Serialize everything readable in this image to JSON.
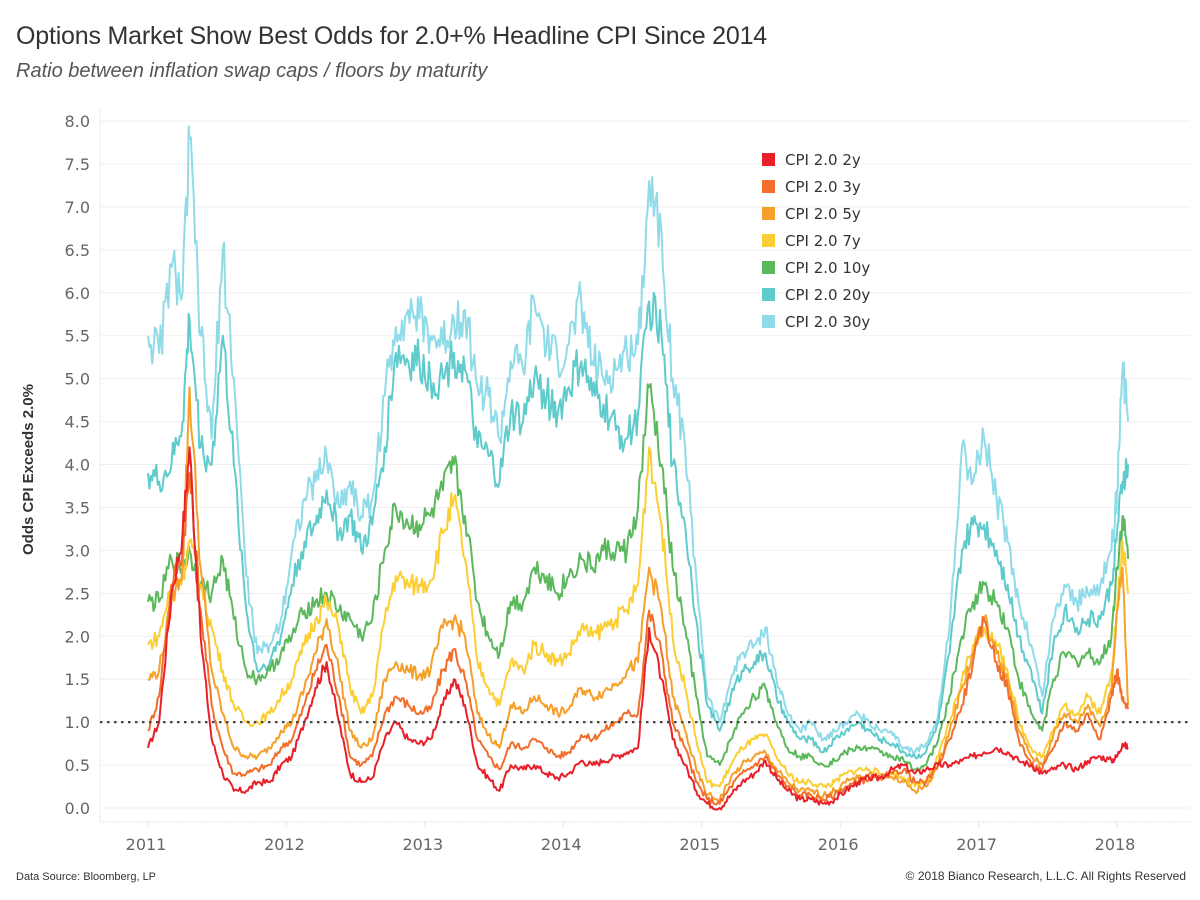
{
  "header": {
    "title": "Options Market Show Best Odds for 2.0+% Headline CPI Since 2014",
    "subtitle": "Ratio between inflation swap caps / floors by maturity"
  },
  "footer": {
    "source": "Data Source: Bloomberg, LP",
    "copyright_symbol": "©",
    "copyright": "2018 Bianco Research, L.L.C. All Rights Reserved"
  },
  "chart_data": {
    "type": "line",
    "title": "Options Market Show Best Odds for 2.0+% Headline CPI Since 2014",
    "subtitle": "Ratio between inflation swap caps / floors by maturity",
    "xlabel": "",
    "ylabel": "Odds CPI Exceeds 2.0%",
    "xlim": [
      2010.65,
      2018.55
    ],
    "ylim": [
      -0.1,
      8.1
    ],
    "yticks": [
      "0.0",
      "0.5",
      "1.0",
      "1.5",
      "2.0",
      "2.5",
      "3.0",
      "3.5",
      "4.0",
      "4.5",
      "5.0",
      "5.5",
      "6.0",
      "6.5",
      "7.0",
      "7.5",
      "8.0"
    ],
    "xticks": [
      "2011",
      "2012",
      "2013",
      "2014",
      "2015",
      "2016",
      "2017",
      "2018"
    ],
    "grid": true,
    "legend_position": "top-right",
    "reference_line": {
      "y": 1.0,
      "style": "dotted",
      "color": "#444444"
    },
    "x": [
      2011.0,
      2011.08,
      2011.17,
      2011.25,
      2011.3,
      2011.38,
      2011.46,
      2011.54,
      2011.62,
      2011.71,
      2011.79,
      2011.88,
      2011.96,
      2012.04,
      2012.13,
      2012.21,
      2012.29,
      2012.38,
      2012.46,
      2012.54,
      2012.62,
      2012.71,
      2012.79,
      2012.88,
      2012.96,
      2013.04,
      2013.13,
      2013.21,
      2013.29,
      2013.38,
      2013.46,
      2013.54,
      2013.62,
      2013.71,
      2013.79,
      2013.88,
      2013.96,
      2014.04,
      2014.13,
      2014.21,
      2014.29,
      2014.38,
      2014.46,
      2014.54,
      2014.62,
      2014.71,
      2014.79,
      2014.88,
      2014.96,
      2015.04,
      2015.13,
      2015.21,
      2015.29,
      2015.38,
      2015.46,
      2015.54,
      2015.62,
      2015.71,
      2015.79,
      2015.88,
      2015.96,
      2016.04,
      2016.13,
      2016.21,
      2016.29,
      2016.38,
      2016.46,
      2016.54,
      2016.62,
      2016.71,
      2016.79,
      2016.88,
      2016.96,
      2017.04,
      2017.13,
      2017.21,
      2017.29,
      2017.38,
      2017.46,
      2017.54,
      2017.62,
      2017.71,
      2017.79,
      2017.88,
      2017.96,
      2018.0,
      2018.04,
      2018.08
    ],
    "series": [
      {
        "name": "CPI 2.0 2y",
        "color": "#e8202a",
        "values": [
          0.7,
          1.0,
          2.5,
          3.2,
          4.2,
          2.0,
          0.8,
          0.4,
          0.2,
          0.2,
          0.3,
          0.3,
          0.5,
          0.6,
          1.0,
          1.4,
          1.7,
          1.0,
          0.4,
          0.3,
          0.35,
          0.8,
          1.0,
          0.8,
          0.75,
          0.8,
          1.2,
          1.5,
          1.2,
          0.5,
          0.35,
          0.2,
          0.5,
          0.45,
          0.5,
          0.4,
          0.35,
          0.4,
          0.55,
          0.5,
          0.55,
          0.6,
          0.65,
          0.7,
          2.1,
          1.5,
          0.8,
          0.5,
          0.2,
          0.05,
          0.0,
          0.15,
          0.3,
          0.4,
          0.55,
          0.35,
          0.2,
          0.1,
          0.1,
          0.05,
          0.1,
          0.2,
          0.3,
          0.35,
          0.35,
          0.45,
          0.5,
          0.4,
          0.45,
          0.5,
          0.5,
          0.55,
          0.6,
          0.65,
          0.7,
          0.65,
          0.55,
          0.5,
          0.4,
          0.45,
          0.5,
          0.45,
          0.55,
          0.6,
          0.55,
          0.6,
          0.75,
          0.7
        ]
      },
      {
        "name": "CPI 2.0 3y",
        "color": "#f26e2b",
        "values": [
          0.9,
          1.3,
          2.6,
          3.0,
          3.9,
          2.3,
          1.2,
          0.7,
          0.4,
          0.4,
          0.45,
          0.5,
          0.7,
          0.8,
          1.2,
          1.6,
          1.9,
          1.3,
          0.6,
          0.5,
          0.6,
          1.1,
          1.3,
          1.2,
          1.1,
          1.15,
          1.6,
          1.85,
          1.5,
          0.8,
          0.6,
          0.45,
          0.75,
          0.7,
          0.8,
          0.7,
          0.6,
          0.65,
          0.85,
          0.8,
          0.9,
          1.0,
          1.1,
          1.1,
          2.3,
          1.8,
          1.0,
          0.7,
          0.3,
          0.1,
          0.05,
          0.25,
          0.4,
          0.5,
          0.6,
          0.4,
          0.25,
          0.15,
          0.15,
          0.1,
          0.15,
          0.25,
          0.3,
          0.35,
          0.35,
          0.4,
          0.45,
          0.3,
          0.3,
          0.5,
          0.8,
          1.2,
          1.7,
          2.2,
          1.7,
          1.4,
          0.8,
          0.5,
          0.45,
          0.7,
          1.0,
          0.9,
          1.1,
          0.8,
          1.3,
          1.6,
          1.25,
          1.15
        ]
      },
      {
        "name": "CPI 2.0 5y",
        "color": "#f5a02a",
        "values": [
          1.5,
          1.6,
          2.4,
          2.8,
          4.9,
          2.8,
          1.6,
          1.1,
          0.7,
          0.6,
          0.6,
          0.7,
          0.9,
          1.0,
          1.4,
          1.8,
          2.2,
          1.6,
          0.9,
          0.7,
          0.8,
          1.5,
          1.7,
          1.6,
          1.55,
          1.6,
          2.1,
          2.2,
          2.0,
          1.1,
          0.85,
          0.7,
          1.2,
          1.1,
          1.3,
          1.2,
          1.1,
          1.15,
          1.4,
          1.3,
          1.35,
          1.45,
          1.6,
          1.7,
          2.8,
          2.3,
          1.3,
          0.9,
          0.45,
          0.15,
          0.1,
          0.35,
          0.5,
          0.6,
          0.65,
          0.45,
          0.3,
          0.2,
          0.2,
          0.15,
          0.2,
          0.3,
          0.35,
          0.4,
          0.35,
          0.35,
          0.3,
          0.2,
          0.25,
          0.5,
          0.9,
          1.4,
          1.8,
          2.2,
          1.8,
          1.5,
          0.9,
          0.6,
          0.5,
          0.85,
          1.1,
          1.0,
          1.2,
          0.95,
          1.4,
          2.3,
          2.8,
          1.2
        ]
      },
      {
        "name": "CPI 2.0 7y",
        "color": "#fbcf33",
        "values": [
          1.9,
          2.0,
          2.6,
          2.7,
          3.1,
          2.6,
          2.1,
          1.6,
          1.2,
          1.0,
          1.0,
          1.1,
          1.3,
          1.5,
          1.9,
          2.2,
          2.4,
          2.1,
          1.4,
          1.1,
          1.3,
          2.2,
          2.7,
          2.6,
          2.6,
          2.65,
          3.2,
          3.6,
          2.9,
          1.7,
          1.4,
          1.2,
          1.7,
          1.6,
          1.9,
          1.8,
          1.7,
          1.8,
          2.1,
          2.0,
          2.1,
          2.2,
          2.3,
          2.6,
          4.2,
          3.3,
          2.0,
          1.4,
          0.8,
          0.3,
          0.25,
          0.5,
          0.7,
          0.8,
          0.85,
          0.6,
          0.4,
          0.3,
          0.3,
          0.25,
          0.3,
          0.4,
          0.45,
          0.45,
          0.4,
          0.4,
          0.35,
          0.25,
          0.3,
          0.6,
          1.0,
          1.5,
          1.9,
          2.1,
          1.9,
          1.6,
          1.0,
          0.7,
          0.6,
          0.9,
          1.2,
          1.1,
          1.3,
          1.1,
          1.6,
          2.3,
          3.1,
          2.5
        ]
      },
      {
        "name": "CPI 2.0 10y",
        "color": "#5cb85c",
        "values": [
          2.4,
          2.4,
          2.9,
          2.8,
          3.0,
          2.6,
          2.5,
          2.9,
          2.2,
          1.6,
          1.5,
          1.6,
          1.8,
          2.0,
          2.3,
          2.4,
          2.5,
          2.3,
          2.2,
          2.0,
          2.2,
          3.0,
          3.5,
          3.3,
          3.3,
          3.4,
          3.7,
          4.0,
          3.4,
          2.4,
          2.0,
          1.8,
          2.4,
          2.4,
          2.8,
          2.7,
          2.5,
          2.7,
          2.9,
          2.8,
          3.0,
          3.0,
          3.0,
          3.5,
          4.9,
          4.0,
          2.8,
          2.1,
          1.3,
          0.6,
          0.5,
          0.8,
          1.1,
          1.3,
          1.4,
          1.0,
          0.7,
          0.6,
          0.6,
          0.5,
          0.55,
          0.65,
          0.7,
          0.7,
          0.65,
          0.6,
          0.55,
          0.45,
          0.5,
          0.8,
          1.3,
          2.0,
          2.4,
          2.6,
          2.4,
          2.1,
          1.5,
          1.1,
          0.9,
          1.5,
          1.8,
          1.7,
          1.8,
          1.7,
          2.0,
          2.8,
          3.4,
          2.9
        ]
      },
      {
        "name": "CPI 2.0 20y",
        "color": "#5fcbcc",
        "values": [
          3.9,
          3.8,
          4.0,
          4.5,
          5.7,
          4.2,
          4.0,
          5.5,
          4.0,
          2.3,
          1.6,
          1.7,
          2.0,
          2.6,
          3.1,
          3.3,
          3.7,
          3.2,
          3.4,
          3.0,
          3.3,
          4.2,
          5.3,
          5.2,
          5.2,
          5.0,
          5.0,
          5.3,
          5.1,
          4.2,
          4.1,
          3.8,
          4.6,
          4.5,
          5.0,
          4.8,
          4.6,
          4.9,
          5.2,
          4.8,
          4.7,
          4.4,
          4.3,
          4.6,
          5.9,
          5.5,
          4.0,
          3.3,
          2.2,
          1.2,
          0.9,
          1.3,
          1.6,
          1.7,
          1.8,
          1.3,
          1.0,
          0.8,
          0.8,
          0.65,
          0.8,
          0.9,
          1.0,
          0.9,
          0.8,
          0.75,
          0.65,
          0.6,
          0.65,
          1.0,
          1.8,
          3.0,
          3.3,
          3.3,
          3.0,
          2.6,
          2.0,
          1.6,
          1.1,
          1.9,
          2.3,
          2.1,
          2.2,
          2.2,
          2.6,
          3.2,
          3.8,
          4.0
        ]
      },
      {
        "name": "CPI 2.0 30y",
        "color": "#8fdbe9",
        "values": [
          5.5,
          5.3,
          6.3,
          6.0,
          7.8,
          5.5,
          4.3,
          6.5,
          5.0,
          2.7,
          1.8,
          1.9,
          2.2,
          3.0,
          3.6,
          3.8,
          4.1,
          3.5,
          3.8,
          3.4,
          3.6,
          4.8,
          5.6,
          5.8,
          5.7,
          5.5,
          5.4,
          5.7,
          5.8,
          4.9,
          4.8,
          4.3,
          5.2,
          5.1,
          5.9,
          5.4,
          5.2,
          5.4,
          5.9,
          5.2,
          5.0,
          5.1,
          5.3,
          5.4,
          7.3,
          6.7,
          5.0,
          4.2,
          2.7,
          1.3,
          1.0,
          1.5,
          1.8,
          1.9,
          2.1,
          1.5,
          1.1,
          0.9,
          1.0,
          0.8,
          0.9,
          1.0,
          1.1,
          1.0,
          0.9,
          0.85,
          0.7,
          0.65,
          0.75,
          1.1,
          2.1,
          4.2,
          3.8,
          4.3,
          3.6,
          3.1,
          2.4,
          1.9,
          1.3,
          2.2,
          2.6,
          2.4,
          2.5,
          2.6,
          3.0,
          3.7,
          5.1,
          4.5
        ]
      }
    ]
  }
}
